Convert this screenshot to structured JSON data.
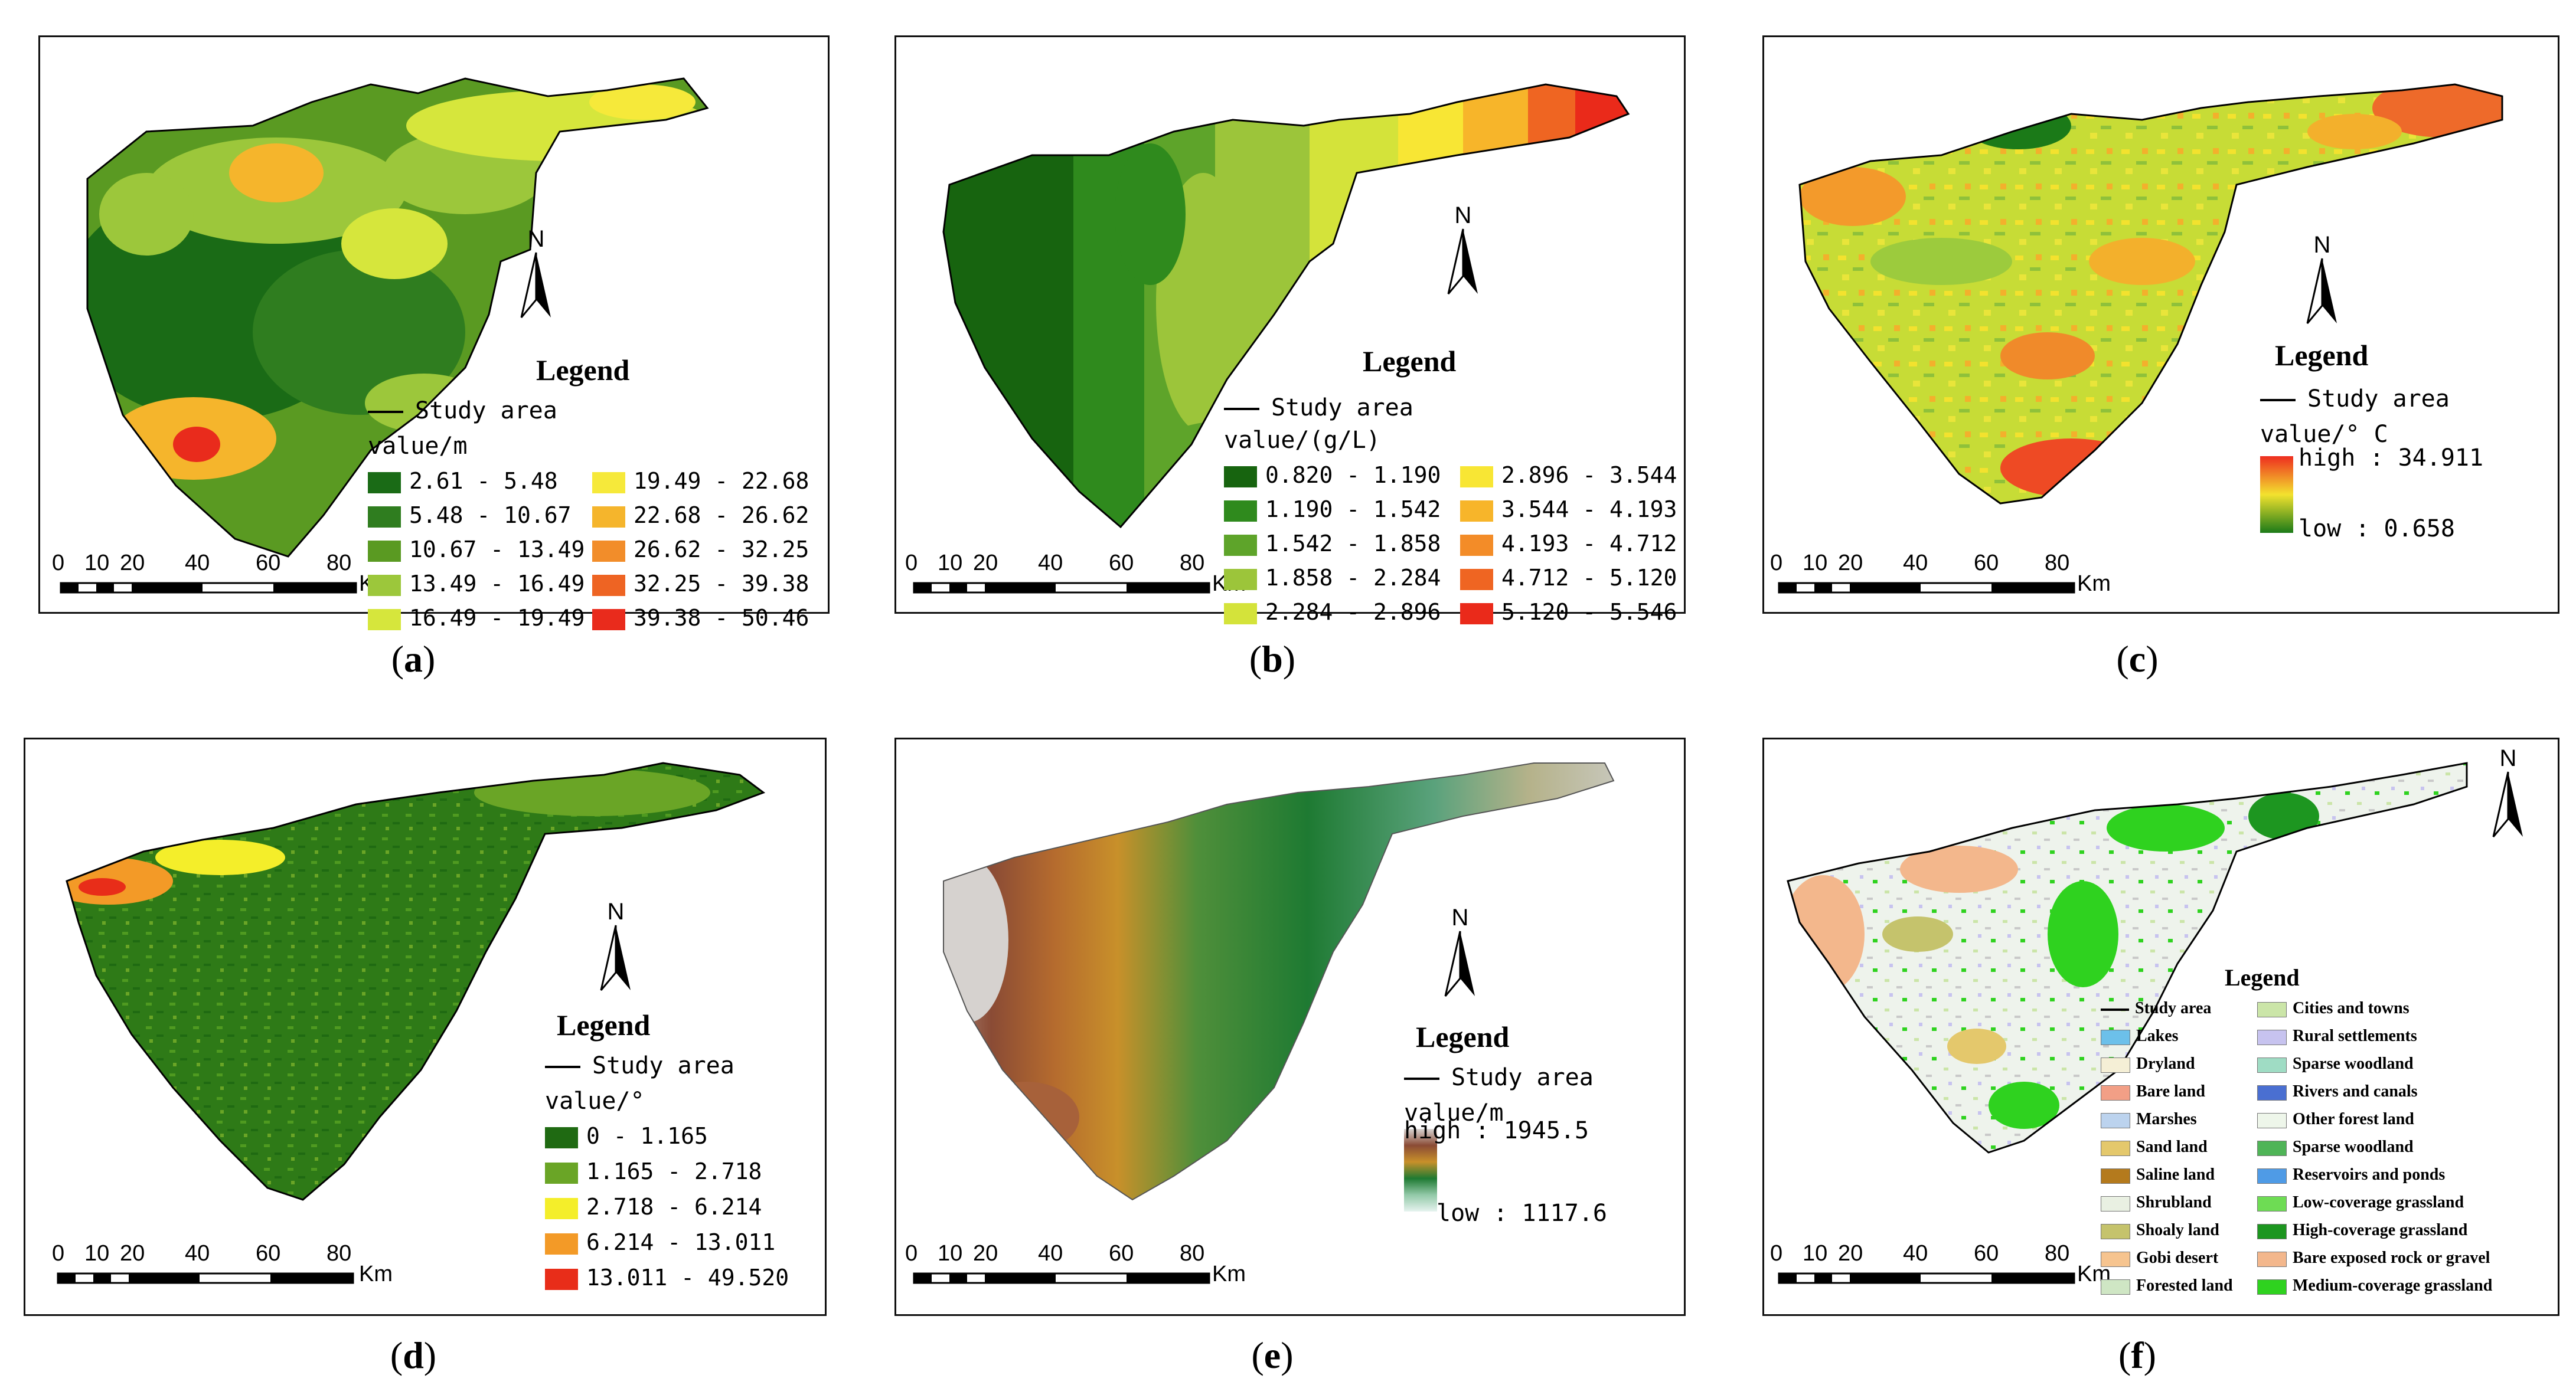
{
  "panels": {
    "a": {
      "caption": "a",
      "legend_title": "Legend",
      "study_area": "Study area",
      "unit": "value/m",
      "classes": [
        {
          "range": "2.61 - 5.48",
          "color": "#1a6b16"
        },
        {
          "range": "5.48 - 10.67",
          "color": "#2f7d1f"
        },
        {
          "range": "10.67 - 13.49",
          "color": "#5a9a22"
        },
        {
          "range": "13.49 - 16.49",
          "color": "#9cc73b"
        },
        {
          "range": "16.49 - 19.49",
          "color": "#d6e63c"
        },
        {
          "range": "19.49 - 22.68",
          "color": "#f6e93a"
        },
        {
          "range": "22.68 - 26.62",
          "color": "#f5b52c"
        },
        {
          "range": "26.62 - 32.25",
          "color": "#f28d2a"
        },
        {
          "range": "32.25 - 39.38",
          "color": "#ee6423"
        },
        {
          "range": "39.38 - 50.46",
          "color": "#e92b1c"
        }
      ]
    },
    "b": {
      "caption": "b",
      "legend_title": "Legend",
      "study_area": "Study area",
      "unit": "value/(g/L)",
      "classes": [
        {
          "range": "0.820 - 1.190",
          "color": "#17640f"
        },
        {
          "range": "1.190 - 1.542",
          "color": "#2f8a1d"
        },
        {
          "range": "1.542 - 1.858",
          "color": "#5ea42a"
        },
        {
          "range": "1.858 - 2.284",
          "color": "#9cc53a"
        },
        {
          "range": "2.284 - 2.896",
          "color": "#d4e33a"
        },
        {
          "range": "2.896 - 3.544",
          "color": "#f8e634"
        },
        {
          "range": "3.544 - 4.193",
          "color": "#f7b52a"
        },
        {
          "range": "4.193 - 4.712",
          "color": "#f38c28"
        },
        {
          "range": "4.712 - 5.120",
          "color": "#ef6522"
        },
        {
          "range": "5.120 - 5.546",
          "color": "#ea2a1a"
        }
      ]
    },
    "c": {
      "caption": "c",
      "legend_title": "Legend",
      "study_area": "Study area",
      "unit": "value/° C",
      "high": "high : 34.911",
      "low": "low : 0.658",
      "ramp_top": "#ee2d1f",
      "ramp_mid": "#f3e22e",
      "ramp_bottom": "#1b7a18"
    },
    "d": {
      "caption": "d",
      "legend_title": "Legend",
      "study_area": "Study area",
      "unit": "value/°",
      "classes": [
        {
          "range": "0 - 1.165",
          "color": "#1f6a12"
        },
        {
          "range": "1.165 - 2.718",
          "color": "#6aa526"
        },
        {
          "range": "2.718 - 6.214",
          "color": "#f4ee2a"
        },
        {
          "range": "6.214 - 13.011",
          "color": "#f39a27"
        },
        {
          "range": "13.011 - 49.520",
          "color": "#e82d19"
        }
      ]
    },
    "e": {
      "caption": "e",
      "legend_title": "Legend",
      "study_area": "Study area",
      "unit": "value/m",
      "high": "high : 1945.5",
      "low": "low : 1117.6",
      "ramp_colors": [
        "#d8d4d2",
        "#8a4b35",
        "#c8902a",
        "#1e7a32",
        "#93c9a8",
        "#e6f3ef"
      ]
    },
    "f": {
      "caption": "f",
      "legend_title": "Legend",
      "left_items": [
        {
          "label": "Study area",
          "color": "#000000",
          "kind": "line"
        },
        {
          "label": "Lakes",
          "color": "#6cc0ea"
        },
        {
          "label": "Dryland",
          "color": "#f5efd6"
        },
        {
          "label": "Bare land",
          "color": "#f29f86"
        },
        {
          "label": "Marshes",
          "color": "#bcd3ee"
        },
        {
          "label": "Sand land",
          "color": "#e4c86c"
        },
        {
          "label": "Saline land",
          "color": "#b47a1d"
        },
        {
          "label": "Shrubland",
          "color": "#e9f0e2"
        },
        {
          "label": "Shoaly land",
          "color": "#c5c36c"
        },
        {
          "label": "Gobi desert",
          "color": "#f6c48f"
        },
        {
          "label": "Forested land",
          "color": "#cfe6c4"
        }
      ],
      "right_items": [
        {
          "label": "Cities and towns",
          "color": "#cbe5a8"
        },
        {
          "label": "Rural settlements",
          "color": "#c7c3ef"
        },
        {
          "label": "Sparse woodland",
          "color": "#9fdcc4"
        },
        {
          "label": "Rivers and canals",
          "color": "#4a6fd1"
        },
        {
          "label": "Other forest land",
          "color": "#eef6ea"
        },
        {
          "label": "Sparse woodland",
          "color": "#4fb457"
        },
        {
          "label": "Reservoirs and ponds",
          "color": "#4f9be6"
        },
        {
          "label": "Low-coverage grassland",
          "color": "#6edc54"
        },
        {
          "label": "High-coverage grassland",
          "color": "#1d9620"
        },
        {
          "label": "Bare exposed rock or gravel",
          "color": "#f3b78c"
        },
        {
          "label": "Medium-coverage grassland",
          "color": "#2fd21f"
        }
      ]
    }
  },
  "common": {
    "north_label": "N",
    "scale_labels": [
      "0",
      "10",
      "20",
      "40",
      "60",
      "80"
    ],
    "scale_unit": "Km"
  }
}
